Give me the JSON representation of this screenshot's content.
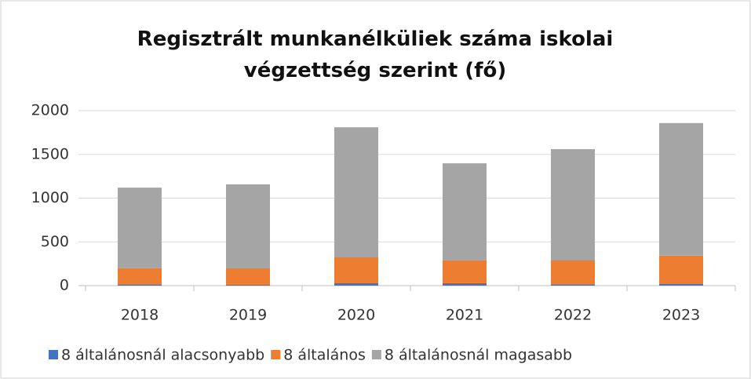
{
  "chart_data": {
    "type": "stacked-bar",
    "title": "Regisztrált munkanélküliek száma iskolai végzettség szerint (fő)",
    "categories": [
      "2018",
      "2019",
      "2020",
      "2021",
      "2022",
      "2023"
    ],
    "series": [
      {
        "name": "8 általánosnál alacsonyabb",
        "color": "#4472c4",
        "values": [
          15,
          12,
          30,
          28,
          15,
          18
        ]
      },
      {
        "name": "8 általános",
        "color": "#ed7d31",
        "values": [
          185,
          185,
          300,
          260,
          280,
          325
        ]
      },
      {
        "name": "8 általánosnál magasabb",
        "color": "#a5a5a5",
        "values": [
          920,
          960,
          1480,
          1110,
          1265,
          1515
        ]
      }
    ],
    "ylim": [
      0,
      2000
    ],
    "yticks": [
      0,
      500,
      1000,
      1500,
      2000
    ],
    "grid": true,
    "legend": "bottom"
  }
}
